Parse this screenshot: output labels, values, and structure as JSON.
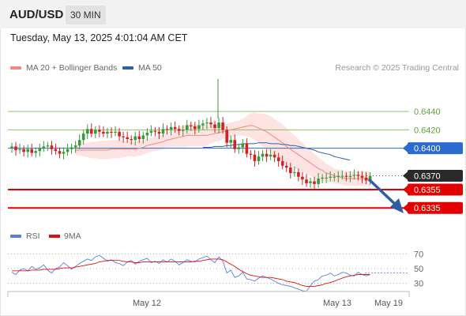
{
  "header": {
    "symbol": "AUD/USD",
    "interval": "30 MIN"
  },
  "datetime": "Tuesday, May 13, 2025 4:01:04 AM CET",
  "legend": [
    {
      "label": "MA 20 + Bollinger Bands",
      "color": "#f08a80"
    },
    {
      "label": "MA 50",
      "color": "#2e5fa8"
    }
  ],
  "credit": "Research © 2025 Trading Central",
  "rsi_legend": [
    {
      "label": "RSI",
      "color": "#5b7fd6"
    },
    {
      "label": "9MA",
      "color": "#e01010"
    }
  ],
  "colors": {
    "up": "#3a9a3a",
    "down": "#d42020",
    "current": "#2a2a2a",
    "pivot": "#2b6ad1",
    "support": "#e30000",
    "resistance": "#8cc46a",
    "arrow": "#2f5da3"
  },
  "chart_data": [
    {
      "type": "candlestick",
      "ylim": [
        0.6318,
        0.6478
      ],
      "x_tick_labels": [
        "May 12",
        "May 13",
        "May 19"
      ],
      "levels": [
        {
          "value": 0.644,
          "label": "0.6440",
          "kind": "resistance"
        },
        {
          "value": 0.642,
          "label": "0.6420",
          "kind": "resistance"
        },
        {
          "value": 0.64,
          "label": "0.6400",
          "kind": "pivot"
        },
        {
          "value": 0.637,
          "label": "0.6370",
          "kind": "current"
        },
        {
          "value": 0.6355,
          "label": "0.6355",
          "kind": "support"
        },
        {
          "value": 0.6335,
          "label": "0.6335",
          "kind": "support"
        }
      ],
      "close": [
        0.6402,
        0.6398,
        0.6399,
        0.6396,
        0.6399,
        0.6395,
        0.6397,
        0.64,
        0.6402,
        0.6403,
        0.6399,
        0.6397,
        0.6394,
        0.6396,
        0.6399,
        0.6401,
        0.6403,
        0.6409,
        0.6416,
        0.6421,
        0.6416,
        0.642,
        0.6418,
        0.6416,
        0.6418,
        0.6417,
        0.6418,
        0.6413,
        0.6412,
        0.641,
        0.6409,
        0.6413,
        0.641,
        0.6414,
        0.6417,
        0.6419,
        0.6418,
        0.6416,
        0.6421,
        0.642,
        0.6423,
        0.6421,
        0.6419,
        0.642,
        0.6425,
        0.6424,
        0.6421,
        0.6425,
        0.6427,
        0.6428,
        0.6426,
        0.6422,
        0.6428,
        0.642,
        0.6406,
        0.6409,
        0.6399,
        0.6401,
        0.6405,
        0.6394,
        0.6393,
        0.6386,
        0.6391,
        0.6394,
        0.6391,
        0.6393,
        0.639,
        0.6386,
        0.6381,
        0.6379,
        0.6373,
        0.6374,
        0.6369,
        0.6366,
        0.6362,
        0.6364,
        0.6361,
        0.6367,
        0.6368,
        0.6368,
        0.6369,
        0.6369,
        0.637,
        0.637,
        0.6369,
        0.637,
        0.6371,
        0.637,
        0.6368,
        0.6365,
        0.637
      ],
      "ma20": [
        0.6398,
        0.6398,
        0.6398,
        0.6398,
        0.6398,
        0.6398,
        0.6398,
        0.6398,
        0.6398,
        0.6399,
        0.6399,
        0.6399,
        0.6399,
        0.6399,
        0.6399,
        0.6399,
        0.64,
        0.6401,
        0.6403,
        0.6404,
        0.6405,
        0.6406,
        0.6407,
        0.6409,
        0.641,
        0.6411,
        0.6412,
        0.6413,
        0.6414,
        0.6414,
        0.6414,
        0.6414,
        0.6414,
        0.6414,
        0.6415,
        0.6416,
        0.6417,
        0.6418,
        0.6419,
        0.642,
        0.6421,
        0.6422,
        0.6423,
        0.6424,
        0.6425,
        0.6424,
        0.6422,
        0.642,
        0.6418,
        0.6415,
        0.6412,
        0.6409,
        0.6406,
        0.6402,
        0.6399,
        0.6396,
        0.6393,
        0.639,
        0.6387,
        0.6384,
        0.6381,
        0.6378,
        0.6376,
        0.6373,
        0.6372,
        0.637,
        0.6369,
        0.6368,
        0.6367,
        0.6367,
        0.6367,
        0.6367,
        0.6367,
        0.6367,
        0.6366
      ],
      "ma20_start": 16,
      "ma50": [
        0.6401,
        0.6401,
        0.6401,
        0.6402,
        0.6402,
        0.6402,
        0.6403,
        0.6403,
        0.6404,
        0.6404,
        0.6405,
        0.6405,
        0.6405,
        0.6405,
        0.6406,
        0.6406,
        0.6406,
        0.6405,
        0.6405,
        0.6405,
        0.6404,
        0.6404,
        0.6403,
        0.6403,
        0.6402,
        0.6401,
        0.64,
        0.6399,
        0.6398,
        0.6396,
        0.6395,
        0.6394,
        0.6393,
        0.6391,
        0.639,
        0.6389,
        0.6388,
        0.6387
      ],
      "ma50_start": 48,
      "bb_width": [
        0.0006,
        0.0006,
        0.0007,
        0.0008,
        0.0009,
        0.0009,
        0.001,
        0.001,
        0.001,
        0.001,
        0.001,
        0.001,
        0.0009,
        0.0008,
        0.0008,
        0.0008,
        0.0008,
        0.0008,
        0.0008,
        0.0008,
        0.0008,
        0.0008,
        0.0008,
        0.0008,
        0.0009,
        0.001,
        0.0011,
        0.0012,
        0.0012,
        0.0012,
        0.0012,
        0.0012,
        0.0012,
        0.0011,
        0.001,
        0.0009,
        0.0009,
        0.0008,
        0.0008,
        0.0008,
        0.0008,
        0.0008,
        0.0009,
        0.0011,
        0.0013,
        0.0015,
        0.0016,
        0.0018,
        0.0019,
        0.002,
        0.002,
        0.002,
        0.002,
        0.002,
        0.0019,
        0.0018,
        0.0017,
        0.0016,
        0.0015,
        0.0014,
        0.0013,
        0.0012,
        0.0011,
        0.001,
        0.0009,
        0.0008,
        0.0008,
        0.0008,
        0.0008,
        0.0008,
        0.0008,
        0.0008,
        0.0008,
        0.0008,
        0.0008
      ]
    },
    {
      "type": "line",
      "title": "RSI",
      "y_ticks": [
        70,
        50,
        30
      ],
      "ylim": [
        20,
        80
      ],
      "rsi": [
        45,
        42,
        48,
        50,
        47,
        53,
        49,
        51,
        55,
        48,
        44,
        50,
        52,
        58,
        54,
        49,
        53,
        57,
        60,
        63,
        61,
        66,
        68,
        64,
        60,
        62,
        58,
        57,
        54,
        59,
        61,
        56,
        60,
        62,
        64,
        58,
        60,
        57,
        62,
        59,
        63,
        60,
        55,
        58,
        62,
        60,
        59,
        63,
        65,
        67,
        62,
        58,
        66,
        60,
        44,
        48,
        38,
        40,
        45,
        36,
        35,
        33,
        37,
        40,
        38,
        36,
        33,
        30,
        28,
        27,
        26,
        24,
        22,
        20,
        19,
        27,
        33,
        35,
        40,
        41,
        44,
        40,
        42,
        45,
        44,
        41,
        40,
        45,
        42,
        40,
        42
      ],
      "ma9": [
        47,
        47,
        47,
        47,
        47,
        48,
        48,
        48,
        49,
        49,
        49,
        49,
        50,
        51,
        51,
        51,
        52,
        53,
        54,
        55,
        56,
        57,
        59,
        60,
        61,
        61,
        61,
        61,
        60,
        59,
        59,
        58,
        58,
        59,
        59,
        59,
        59,
        59,
        59,
        59,
        59,
        59,
        59,
        59,
        59,
        59,
        60,
        60,
        61,
        62,
        63,
        63,
        63,
        62,
        59,
        56,
        53,
        49,
        46,
        43,
        41,
        40,
        39,
        38,
        38,
        38,
        37,
        36,
        35,
        33,
        32,
        31,
        29,
        27,
        26,
        26,
        26,
        27,
        28,
        30,
        31,
        33,
        35,
        37,
        39,
        40,
        41,
        42,
        42,
        42,
        42
      ]
    }
  ]
}
